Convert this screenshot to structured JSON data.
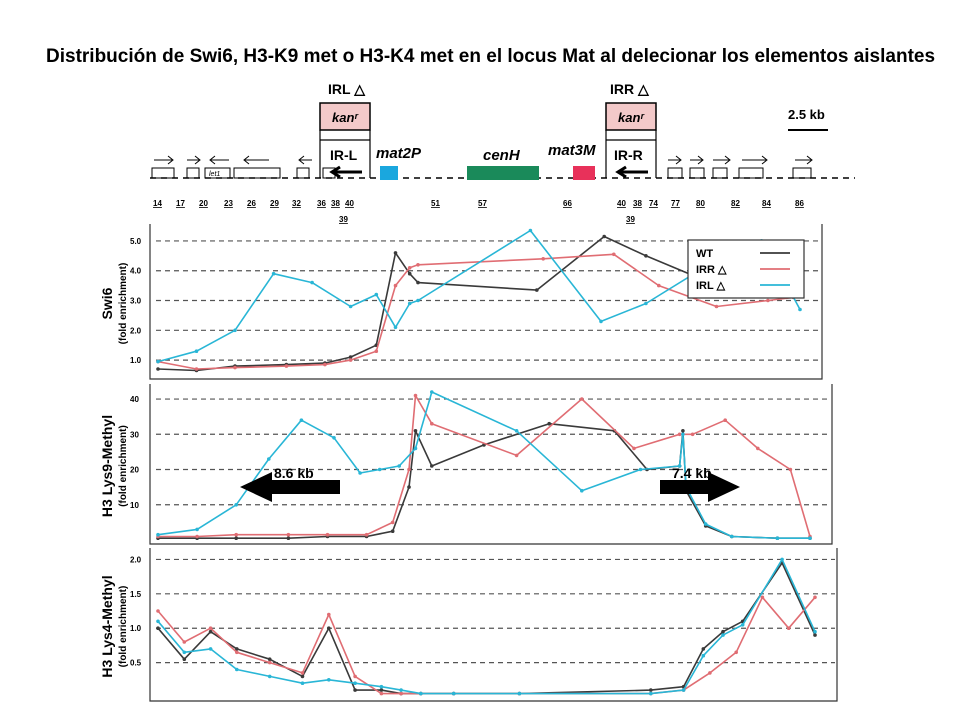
{
  "title": "Distribución de  Swi6, H3-K9 met o H3-K4 met en el locus Mat al delecionar los elementos aislantes",
  "colors": {
    "WT": "#3a3a3a",
    "IRR": "#e06d73",
    "IRL": "#29b6d6",
    "mat2P": "#1aa7de",
    "cenH": "#1a8a5a",
    "mat3M": "#e8315a",
    "kan": "#f3c9c9",
    "grid": "#555555"
  },
  "locus_map": {
    "scale_label": "2.5 kb",
    "elements": [
      "IRL △",
      "kanʳ",
      "IR-L",
      "mat2P",
      "cenH",
      "mat3M",
      "IRR △",
      "kanʳ",
      "IR-R",
      "let1"
    ],
    "positions": [
      "14",
      "17",
      "20",
      "23",
      "26",
      "29",
      "32",
      "36",
      "38",
      "40",
      "39",
      "51",
      "57",
      "66",
      "40",
      "38",
      "74",
      "39",
      "77",
      "80",
      "82",
      "84",
      "86"
    ]
  },
  "chart_data": [
    {
      "type": "line",
      "name": "Swi6",
      "ylabel": "Swi6",
      "ylabel_sub": "(fold enrichment)",
      "yticks": [
        "1.0",
        "2.0",
        "3.0",
        "4.0",
        "5.0"
      ],
      "ylim": [
        0.5,
        5.3
      ],
      "xlim": [
        0,
        1
      ],
      "legend": [
        "WT",
        "IRR △",
        "IRL △"
      ],
      "legend_position": "top-right",
      "series": [
        {
          "name": "WT",
          "x": [
            0.0,
            0.06,
            0.12,
            0.2,
            0.26,
            0.3,
            0.34,
            0.37,
            0.392,
            0.405,
            0.59,
            0.695,
            0.76,
            0.855,
            0.935,
            0.98,
            1.0
          ],
          "y": [
            0.7,
            0.65,
            0.8,
            0.85,
            0.9,
            1.1,
            1.5,
            4.6,
            3.9,
            3.6,
            3.35,
            5.15,
            4.5,
            3.65,
            3.6,
            3.7,
            4.65
          ]
        },
        {
          "name": "IRR △",
          "x": [
            0.0,
            0.06,
            0.12,
            0.2,
            0.26,
            0.3,
            0.34,
            0.37,
            0.392,
            0.405,
            0.6,
            0.71,
            0.78,
            0.87,
            0.95,
            0.99,
            1.0
          ],
          "y": [
            0.95,
            0.7,
            0.75,
            0.8,
            0.85,
            1.0,
            1.3,
            3.5,
            4.1,
            4.2,
            4.4,
            4.55,
            3.5,
            2.8,
            3.0,
            3.1,
            3.2
          ]
        },
        {
          "name": "IRL △",
          "x": [
            0.0,
            0.06,
            0.12,
            0.18,
            0.24,
            0.3,
            0.34,
            0.37,
            0.392,
            0.405,
            0.58,
            0.69,
            0.76,
            0.85,
            0.94,
            0.985,
            1.0
          ],
          "y": [
            0.95,
            1.3,
            2.0,
            3.9,
            3.6,
            2.8,
            3.2,
            2.1,
            2.9,
            3.0,
            5.35,
            2.3,
            2.9,
            4.1,
            5.0,
            3.3,
            2.7
          ]
        }
      ]
    },
    {
      "type": "line",
      "name": "H3 Lys9-Methyl",
      "ylabel": "H3 Lys9-Methyl",
      "ylabel_sub": "(fold enrichment)",
      "yticks": [
        "10",
        "20",
        "30",
        "40"
      ],
      "ylim": [
        0,
        42
      ],
      "annotations": [
        "8.6 kb",
        "7.4 kb"
      ],
      "series": [
        {
          "name": "WT",
          "x": [
            0.0,
            0.06,
            0.12,
            0.2,
            0.26,
            0.32,
            0.36,
            0.385,
            0.395,
            0.42,
            0.5,
            0.6,
            0.7,
            0.75,
            0.8,
            0.805,
            0.81,
            0.84,
            0.88,
            0.95,
            1.0
          ],
          "y": [
            0.5,
            0.5,
            0.5,
            0.5,
            1,
            1,
            2.5,
            15,
            31,
            21,
            27,
            33,
            31,
            20,
            21,
            31,
            14,
            4,
            1,
            0.5,
            0.5
          ]
        },
        {
          "name": "IRR △",
          "x": [
            0.0,
            0.06,
            0.12,
            0.2,
            0.26,
            0.32,
            0.36,
            0.385,
            0.395,
            0.42,
            0.55,
            0.65,
            0.73,
            0.8,
            0.82,
            0.87,
            0.92,
            0.97,
            1.0
          ],
          "y": [
            1,
            1,
            1.5,
            1.5,
            1.5,
            1.5,
            5,
            20,
            41,
            33,
            24,
            40,
            26,
            30,
            30,
            34,
            26,
            20,
            1
          ]
        },
        {
          "name": "IRL △",
          "x": [
            0.0,
            0.06,
            0.12,
            0.17,
            0.22,
            0.27,
            0.31,
            0.34,
            0.37,
            0.395,
            0.42,
            0.55,
            0.65,
            0.74,
            0.8,
            0.805,
            0.81,
            0.84,
            0.88,
            0.95,
            1.0
          ],
          "y": [
            1.5,
            3,
            10,
            23,
            34,
            29,
            19,
            20,
            21,
            26,
            42,
            31,
            14,
            20,
            21,
            30,
            15,
            4.5,
            1,
            0.5,
            0.5
          ]
        }
      ]
    },
    {
      "type": "line",
      "name": "H3 Lys4-Methyl",
      "ylabel": "H3 Lys4-Methyl",
      "ylabel_sub": "(fold enrichment)",
      "yticks": [
        "0.5",
        "1.0",
        "1.5",
        "2.0"
      ],
      "ylim": [
        0,
        2.05
      ],
      "series": [
        {
          "name": "WT",
          "x": [
            0.0,
            0.04,
            0.08,
            0.12,
            0.17,
            0.22,
            0.26,
            0.3,
            0.34,
            0.37,
            0.4,
            0.45,
            0.55,
            0.75,
            0.8,
            0.83,
            0.86,
            0.89,
            0.95,
            1.0
          ],
          "y": [
            1.0,
            0.55,
            0.95,
            0.7,
            0.55,
            0.3,
            1.0,
            0.1,
            0.1,
            0.05,
            0.05,
            0.05,
            0.05,
            0.1,
            0.15,
            0.7,
            0.95,
            1.1,
            1.95,
            0.9
          ]
        },
        {
          "name": "IRR △",
          "x": [
            0.0,
            0.04,
            0.08,
            0.12,
            0.17,
            0.22,
            0.26,
            0.3,
            0.34,
            0.37,
            0.4,
            0.45,
            0.55,
            0.75,
            0.8,
            0.84,
            0.88,
            0.92,
            0.96,
            1.0
          ],
          "y": [
            1.25,
            0.8,
            1.0,
            0.65,
            0.5,
            0.35,
            1.2,
            0.3,
            0.05,
            0.05,
            0.05,
            0.05,
            0.05,
            0.05,
            0.1,
            0.35,
            0.65,
            1.45,
            1.0,
            1.45
          ]
        },
        {
          "name": "IRL △",
          "x": [
            0.0,
            0.04,
            0.08,
            0.12,
            0.17,
            0.22,
            0.26,
            0.3,
            0.34,
            0.37,
            0.4,
            0.45,
            0.55,
            0.75,
            0.8,
            0.83,
            0.86,
            0.89,
            0.95,
            1.0
          ],
          "y": [
            1.1,
            0.65,
            0.7,
            0.4,
            0.3,
            0.2,
            0.25,
            0.2,
            0.15,
            0.1,
            0.05,
            0.05,
            0.05,
            0.05,
            0.1,
            0.6,
            0.9,
            1.05,
            2.0,
            0.95
          ]
        }
      ]
    }
  ]
}
